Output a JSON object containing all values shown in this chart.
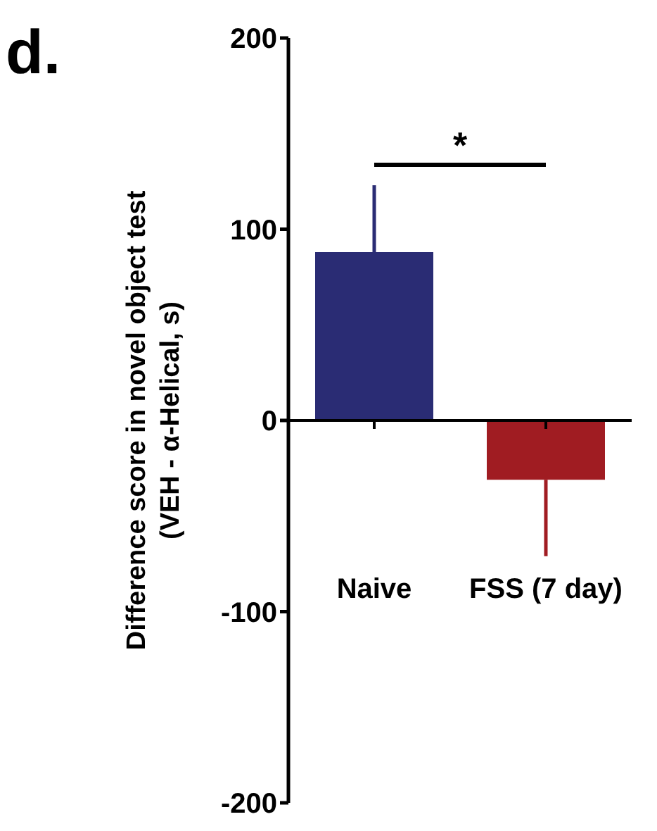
{
  "chart_data": {
    "type": "bar",
    "title": "d.",
    "ylabel": "Difference score in novel object test\n(VEH - α-Helical, s)",
    "categories": [
      "Naive",
      "FSS (7 day)"
    ],
    "values": [
      88,
      -31
    ],
    "colors": [
      "#2a2c74",
      "#a01c22"
    ],
    "errors": [
      [
        88,
        123
      ],
      [
        -71,
        -31
      ]
    ],
    "ylim": [
      -200,
      200
    ],
    "yticks": [
      -200,
      -100,
      0,
      100,
      200
    ],
    "annotations": [
      "*"
    ]
  }
}
